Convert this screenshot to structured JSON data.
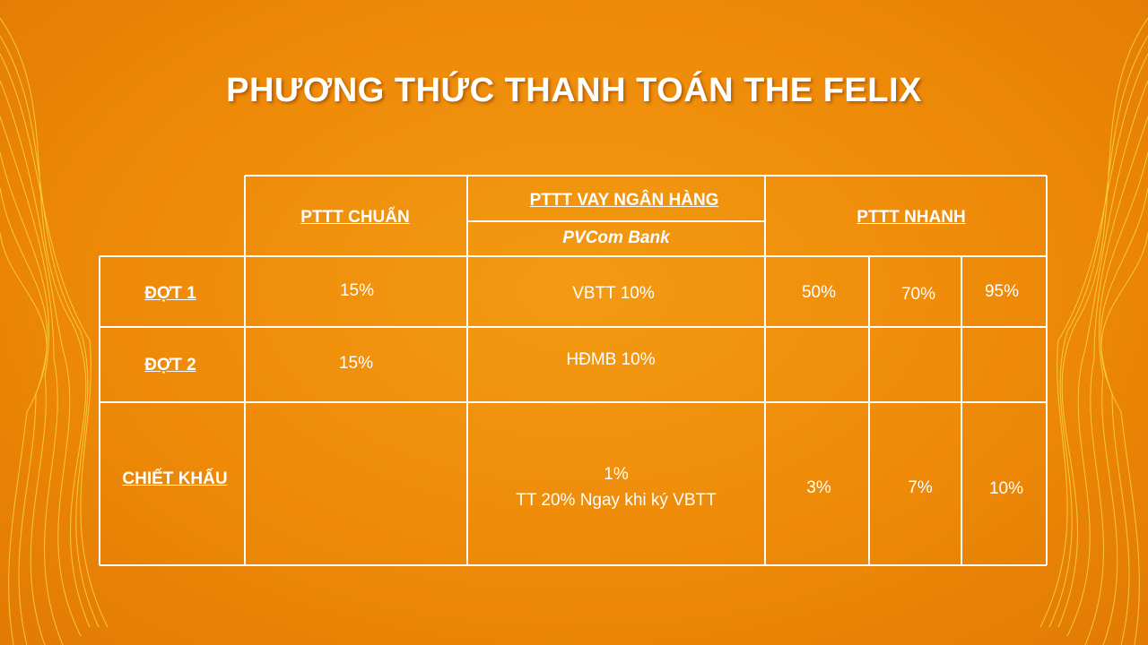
{
  "title": "PHƯƠNG THỨC THANH TOÁN THE FELIX",
  "table": {
    "headers": {
      "standard": "PTTT CHUẨN",
      "bank_loan": "PTTT VAY NGÂN HÀNG",
      "bank_name": "PVCom Bank",
      "fast": "PTTT NHANH"
    },
    "rows": [
      {
        "label": "ĐỢT 1",
        "standard": "15%",
        "bank_loan": "VBTT 10%",
        "fast": [
          "50%",
          "70%",
          "95%"
        ]
      },
      {
        "label": "ĐỢT 2",
        "standard": "15%",
        "bank_loan": "HĐMB 10%",
        "fast": [
          "",
          "",
          ""
        ]
      },
      {
        "label": "CHIẾT KHẤU",
        "standard": "",
        "bank_loan_lines": [
          "1%",
          "TT 20% Ngay khi ký VBTT"
        ],
        "fast": [
          "3%",
          "7%",
          "10%"
        ]
      }
    ]
  },
  "colors": {
    "background": "#ee8a08",
    "accent": "#ffd21a",
    "text": "#ffffff"
  }
}
